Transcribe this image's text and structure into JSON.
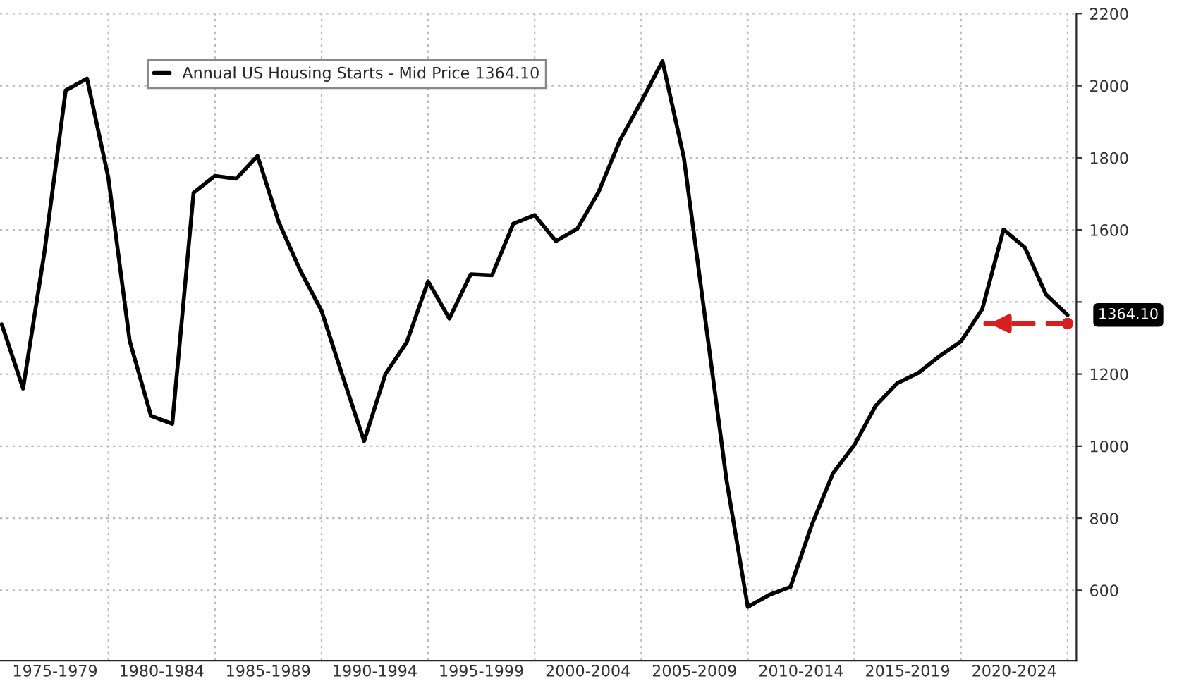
{
  "chart_data": {
    "type": "line",
    "x": [
      "1974-12-31",
      "1975-12-31",
      "1976-12-31",
      "1977-12-31",
      "1978-12-31",
      "1979-12-31",
      "1980-12-31",
      "1981-12-31",
      "1982-12-31",
      "1983-12-31",
      "1984-12-31",
      "1985-12-31",
      "1986-12-31",
      "1987-12-31",
      "1988-12-31",
      "1989-12-31",
      "1990-12-31",
      "1991-12-31",
      "1992-12-31",
      "1993-12-31",
      "1994-12-31",
      "1995-12-31",
      "1996-12-31",
      "1997-12-31",
      "1998-12-31",
      "1999-12-31",
      "2000-12-31",
      "2001-12-31",
      "2002-12-31",
      "2003-12-31",
      "2004-12-31",
      "2005-12-31",
      "2006-12-31",
      "2007-12-31",
      "2008-12-31",
      "2009-12-31",
      "2010-12-31",
      "2011-12-31",
      "2012-12-31",
      "2013-12-31",
      "2014-12-31",
      "2015-12-31",
      "2016-12-31",
      "2017-12-31",
      "2018-12-31",
      "2019-12-31",
      "2020-12-31",
      "2021-12-31",
      "2022-12-31",
      "2023-12-31",
      "2024-12-31"
    ],
    "series": [
      {
        "name": "Annual US Housing Starts - Mid Price 1364.10",
        "color": "#000000",
        "values": [
          1338,
          1160,
          1538,
          1987,
          2020,
          1745,
          1292,
          1084,
          1062,
          1703,
          1750,
          1742,
          1805,
          1621,
          1488,
          1376,
          1193,
          1014,
          1200,
          1288,
          1457,
          1354,
          1477,
          1474,
          1617,
          1641,
          1569,
          1603,
          1705,
          1848,
          1956,
          2068,
          1801,
          1355,
          906,
          554,
          587,
          609,
          781,
          925,
          1003,
          1112,
          1174,
          1203,
          1250,
          1290,
          1380,
          1601,
          1551,
          1420,
          1364
        ]
      },
      {
        "type": "line",
        "color": "#d62020",
        "line_style": "dashed",
        "x": [
          "2024-12-31",
          "2021-03-01"
        ],
        "values": [
          1340,
          1340
        ]
      }
    ],
    "xlim": [
      "1974-12-01",
      "2025-06-01"
    ],
    "xticks": [
      {
        "value": "1977-07-01",
        "label": "1975-1979"
      },
      {
        "value": "1980-01-01",
        "label": null
      },
      {
        "value": "1982-07-01",
        "label": "1980-1984"
      },
      {
        "value": "1985-01-01",
        "label": null
      },
      {
        "value": "1987-07-01",
        "label": "1985-1989"
      },
      {
        "value": "1990-01-01",
        "label": null
      },
      {
        "value": "1992-07-01",
        "label": "1990-1994"
      },
      {
        "value": "1995-01-01",
        "label": null
      },
      {
        "value": "1997-07-01",
        "label": "1995-1999"
      },
      {
        "value": "2000-01-01",
        "label": null
      },
      {
        "value": "2002-07-01",
        "label": "2000-2004"
      },
      {
        "value": "2005-01-01",
        "label": null
      },
      {
        "value": "2007-07-01",
        "label": "2005-2009"
      },
      {
        "value": "2010-01-01",
        "label": null
      },
      {
        "value": "2012-07-01",
        "label": "2010-2014"
      },
      {
        "value": "2015-01-01",
        "label": null
      },
      {
        "value": "2017-07-01",
        "label": "2015-2019"
      },
      {
        "value": "2020-01-01",
        "label": null
      },
      {
        "value": "2022-07-01",
        "label": "2020-2024"
      },
      {
        "value": "2025-01-01",
        "label": null
      }
    ],
    "ylim": [
      405,
      2200
    ],
    "yticks": [
      600,
      800,
      1000,
      1200,
      {
        "value": 1400,
        "label": null
      },
      1600,
      1800,
      2000,
      2200
    ],
    "grid": true,
    "legend": "top left",
    "annotations": [
      {
        "text": "1364.10",
        "x": "2024-12-31",
        "y": 1364
      }
    ]
  }
}
